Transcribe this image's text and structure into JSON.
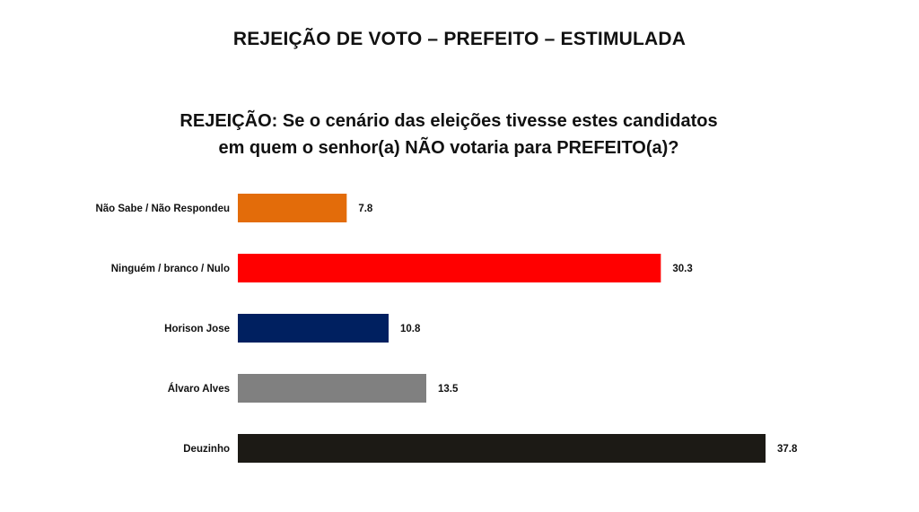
{
  "header": {
    "title": "REJEIÇÃO DE VOTO – PREFEITO – ESTIMULADA",
    "question_line1": "REJEIÇÃO: Se o cenário das eleições tivesse estes candidatos",
    "question_line2": "em quem o senhor(a) NÃO votaria para PREFEITO(a)?"
  },
  "chart_data": {
    "type": "bar",
    "orientation": "horizontal",
    "categories": [
      "Não Sabe / Não Respondeu",
      "Ninguém / branco / Nulo",
      "Horison Jose",
      "Álvaro Alves",
      "Deuzinho"
    ],
    "values": [
      7.8,
      30.3,
      10.8,
      13.5,
      37.8
    ],
    "value_labels": [
      "7.8",
      "30.3",
      "10.8",
      "13.5",
      "37.8"
    ],
    "colors": [
      "#e36c0a",
      "#ff0000",
      "#002060",
      "#808080",
      "#1c1a15"
    ],
    "title": "",
    "xlabel": "",
    "ylabel": "",
    "xlim": [
      0,
      37.8
    ],
    "grid": false,
    "legend": "none"
  }
}
